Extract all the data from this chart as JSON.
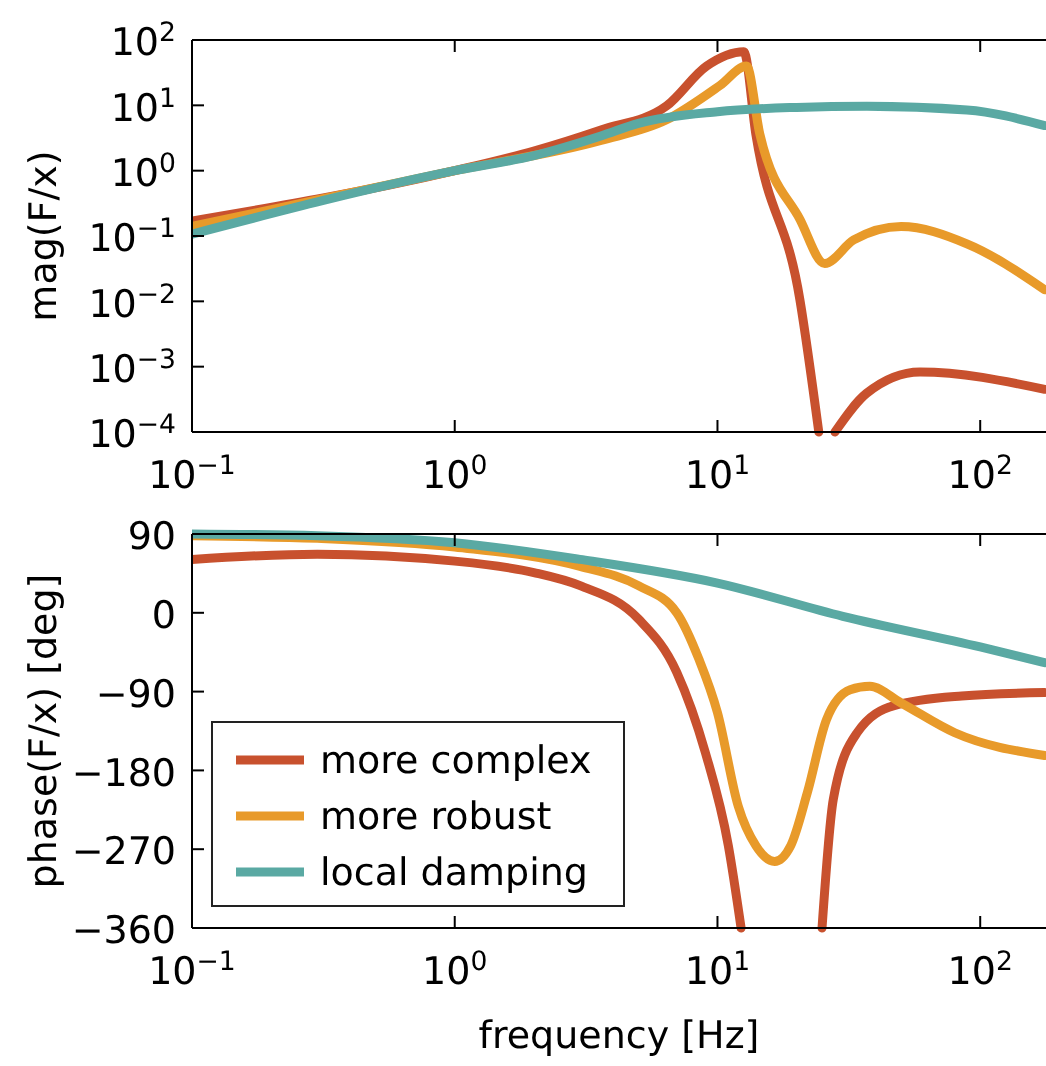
{
  "chart_data": [
    {
      "type": "line",
      "ylabel": "mag(F/x)",
      "log": "xy",
      "legend": false,
      "grid": false,
      "line_style": "solid",
      "xlim": [
        0.1,
        178
      ],
      "xticks": [
        {
          "value": 0.1,
          "label": "10$^{−1}$"
        },
        {
          "value": 1,
          "label": "10$^{0}$"
        },
        {
          "value": 10,
          "label": "10$^{1}$"
        },
        {
          "value": 100,
          "label": "10$^{2}$"
        }
      ],
      "ylim": [
        0.0001,
        100
      ],
      "yticks": [
        {
          "value": 0.0001,
          "label": "10$^{−4}$"
        },
        {
          "value": 0.001,
          "label": "10$^{−3}$"
        },
        {
          "value": 0.01,
          "label": "10$^{−2}$"
        },
        {
          "value": 0.1,
          "label": "10$^{−1}$"
        },
        {
          "value": 1,
          "label": "10$^{0}$"
        },
        {
          "value": 10,
          "label": "10$^{1}$"
        },
        {
          "value": 100,
          "label": "10$^{2}$"
        }
      ],
      "series": [
        {
          "color": "#c8512e",
          "x": [
            0.1,
            1,
            2,
            3.6,
            6.4,
            9.1,
            12.6,
            14,
            20.6,
            24.3,
            26,
            28,
            36.9,
            59,
            176
          ],
          "values": [
            0.17,
            1,
            2,
            4.2,
            9.8,
            40,
            66,
            3.6,
            0.0105,
            0.0001,
            null,
            0.0001,
            0.00039,
            0.00083,
            0.00045
          ]
        },
        {
          "color": "#e89a2a",
          "x": [
            0.1,
            1,
            3.6,
            6.4,
            10.2,
            12.9,
            14.5,
            20.6,
            25.6,
            33,
            50,
            89,
            176
          ],
          "values": [
            0.14,
            1,
            2.9,
            6,
            20,
            40,
            3.6,
            0.18,
            0.038,
            0.087,
            0.14,
            0.076,
            0.015
          ]
        },
        {
          "color": "#5aa9a3",
          "x": [
            0.1,
            1,
            2,
            3.6,
            5,
            10,
            20,
            37,
            89,
            176
          ],
          "values": [
            0.107,
            1,
            1.7,
            3.4,
            5.3,
            8,
            9.3,
            9.7,
            8.5,
            4.9
          ]
        }
      ]
    },
    {
      "type": "line",
      "xlabel": "frequency [Hz]",
      "ylabel": "phase(F/x) [deg]",
      "log": "x",
      "legend": "bottom left",
      "grid": false,
      "line_style": "solid",
      "xlim": [
        0.1,
        178
      ],
      "xticks": [
        {
          "value": 0.1,
          "label": "10$^{−1}$"
        },
        {
          "value": 1,
          "label": "10$^{0}$"
        },
        {
          "value": 10,
          "label": "10$^{1}$"
        },
        {
          "value": 100,
          "label": "10$^{2}$"
        }
      ],
      "ylim": [
        -360,
        90
      ],
      "yticks": [
        90,
        0,
        -90,
        -180,
        -270,
        -360
      ],
      "series": [
        {
          "name": "more complex",
          "color": "#c8512e",
          "x": [
            0.1,
            0.3,
            1,
            2,
            3,
            5,
            7,
            9,
            11,
            12.3,
            18,
            25,
            27.6,
            34,
            47,
            85,
            176
          ],
          "values": [
            61,
            67,
            59,
            46,
            31,
            -7,
            -68,
            -160,
            -266,
            -360,
            null,
            -360,
            -213,
            -137,
            -106,
            -95,
            -91
          ]
        },
        {
          "name": "more robust",
          "color": "#e89a2a",
          "x": [
            0.1,
            0.3,
            1,
            3,
            5,
            7,
            8.5,
            10,
            12,
            14,
            16.5,
            19,
            22,
            26,
            32,
            38,
            50,
            80,
            176
          ],
          "values": [
            88,
            85,
            75,
            53,
            31,
            0,
            -53,
            -114,
            -221,
            -266,
            -284,
            -266,
            -205,
            -122,
            -88,
            -84,
            -103,
            -137,
            -163
          ]
        },
        {
          "name": "local damping",
          "color": "#5aa9a3",
          "x": [
            0.1,
            0.3,
            1,
            3,
            10,
            30,
            100,
            176
          ],
          "values": [
            90,
            88,
            80,
            61,
            34,
            -4,
            -39,
            -57
          ]
        }
      ]
    }
  ]
}
